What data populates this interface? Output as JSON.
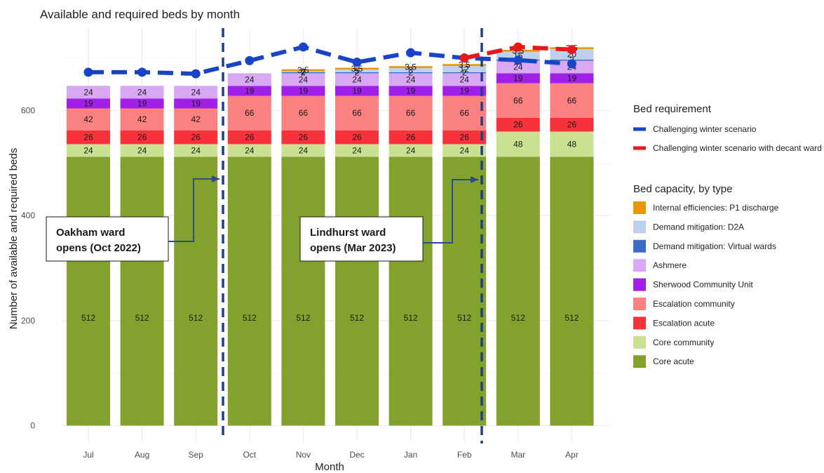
{
  "chart_data": {
    "type": "bar",
    "title": "Available and required beds by month",
    "xlabel": "Month",
    "ylabel": "Number of available and required beds",
    "ylim": [
      0,
      760
    ],
    "yticks": [
      0,
      200,
      400,
      600
    ],
    "grid": true,
    "legend_position": "right",
    "categories": [
      "Jul",
      "Aug",
      "Sep",
      "Oct",
      "Nov",
      "Dec",
      "Jan",
      "Feb",
      "Mar",
      "Apr"
    ],
    "capacity_legend_title": "Bed capacity, by type",
    "requirement_legend_title": "Bed requirement",
    "series": [
      {
        "name": "Core acute",
        "color": "#82a22d",
        "values": [
          512,
          512,
          512,
          512,
          512,
          512,
          512,
          512,
          512,
          512
        ],
        "labels": [
          "512",
          "512",
          "512",
          "512",
          "512",
          "512",
          "512",
          "512",
          "512",
          "512"
        ]
      },
      {
        "name": "Core community",
        "color": "#c9e191",
        "values": [
          24,
          24,
          24,
          24,
          24,
          24,
          24,
          24,
          48,
          48
        ],
        "labels": [
          "24",
          "24",
          "24",
          "24",
          "24",
          "24",
          "24",
          "24",
          "48",
          "48"
        ]
      },
      {
        "name": "Escalation acute",
        "color": "#f6333a",
        "values": [
          26,
          26,
          26,
          26,
          26,
          26,
          26,
          26,
          26,
          26
        ],
        "labels": [
          "26",
          "26",
          "26",
          "26",
          "26",
          "26",
          "26",
          "26",
          "26",
          "26"
        ]
      },
      {
        "name": "Escalation community",
        "color": "#fb8080",
        "values": [
          42,
          42,
          42,
          66,
          66,
          66,
          66,
          66,
          66,
          66
        ],
        "labels": [
          "42",
          "42",
          "42",
          "66",
          "66",
          "66",
          "66",
          "66",
          "66",
          "66"
        ]
      },
      {
        "name": "Sherwood Community Unit",
        "color": "#a120e8",
        "values": [
          19,
          19,
          19,
          19,
          19,
          19,
          19,
          19,
          19,
          19
        ],
        "labels": [
          "19",
          "19",
          "19",
          "19",
          "19",
          "19",
          "19",
          "19",
          "19",
          "19"
        ]
      },
      {
        "name": "Ashmere",
        "color": "#d9a8f2",
        "values": [
          24,
          24,
          24,
          24,
          24,
          24,
          24,
          24,
          24,
          24
        ],
        "labels": [
          "24",
          "24",
          "24",
          "24",
          "24",
          "24",
          "24",
          "24",
          "24",
          "24"
        ]
      },
      {
        "name": "Demand mitigation: Virtual wards",
        "color": "#3a6cc8",
        "values": [
          0,
          0,
          0,
          0,
          2,
          2,
          2,
          2,
          2,
          2
        ],
        "labels": [
          "",
          "",
          "",
          "",
          "2",
          "2",
          "2",
          "2",
          "2",
          "2"
        ]
      },
      {
        "name": "Demand mitigation: D2A",
        "color": "#bfd0ec",
        "values": [
          0,
          0,
          0,
          0,
          2,
          5,
          8,
          12,
          15,
          20
        ],
        "labels": [
          "",
          "",
          "",
          "",
          "2",
          "5",
          "8",
          "12",
          "15",
          "20"
        ]
      },
      {
        "name": "Internal efficiencies: P1 discharge",
        "color": "#e8960a",
        "values": [
          0,
          0,
          0,
          0,
          3.5,
          3.5,
          3.5,
          3.5,
          3.5,
          3.5
        ],
        "labels": [
          "",
          "",
          "",
          "",
          "3.5",
          "3.5",
          "3.5",
          "3.5",
          "3.5",
          "3.5"
        ]
      }
    ],
    "requirement_series": [
      {
        "name": "Challenging winter scenario",
        "color": "#1944c8",
        "values": [
          673,
          673,
          670,
          695,
          721,
          692,
          710,
          700,
          696,
          689
        ]
      },
      {
        "name": "Challenging winter scenario with decant ward",
        "color": "#e81818",
        "values": [
          null,
          null,
          null,
          null,
          null,
          null,
          null,
          700,
          721,
          716
        ]
      }
    ],
    "annotations": [
      {
        "lines": [
          "Oakham ward",
          "opens (Oct 2022)"
        ]
      },
      {
        "lines": [
          "Lindhurst ward",
          "opens (Mar 2023)"
        ]
      }
    ]
  }
}
